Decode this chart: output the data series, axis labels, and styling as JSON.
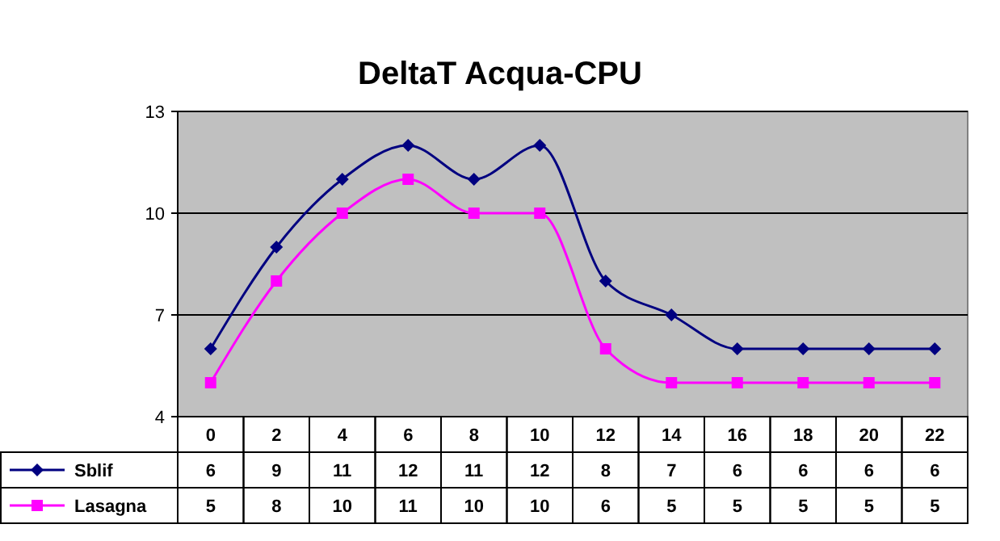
{
  "chart_data": {
    "type": "line",
    "title": "DeltaT Acqua-CPU",
    "categories": [
      "0",
      "2",
      "4",
      "6",
      "8",
      "10",
      "12",
      "14",
      "16",
      "18",
      "20",
      "22"
    ],
    "series": [
      {
        "name": "Sblif",
        "color": "#000080",
        "marker": "diamond",
        "values": [
          6,
          9,
          11,
          12,
          11,
          12,
          8,
          7,
          6,
          6,
          6,
          6
        ]
      },
      {
        "name": "Lasagna",
        "color": "#ff00ff",
        "marker": "square",
        "values": [
          5,
          8,
          10,
          11,
          10,
          10,
          6,
          5,
          5,
          5,
          5,
          5
        ]
      }
    ],
    "ylim": [
      4,
      13
    ],
    "yticks": [
      4,
      7,
      10,
      13
    ],
    "grid": "y",
    "legend": "bottom left",
    "data_labels": true
  }
}
